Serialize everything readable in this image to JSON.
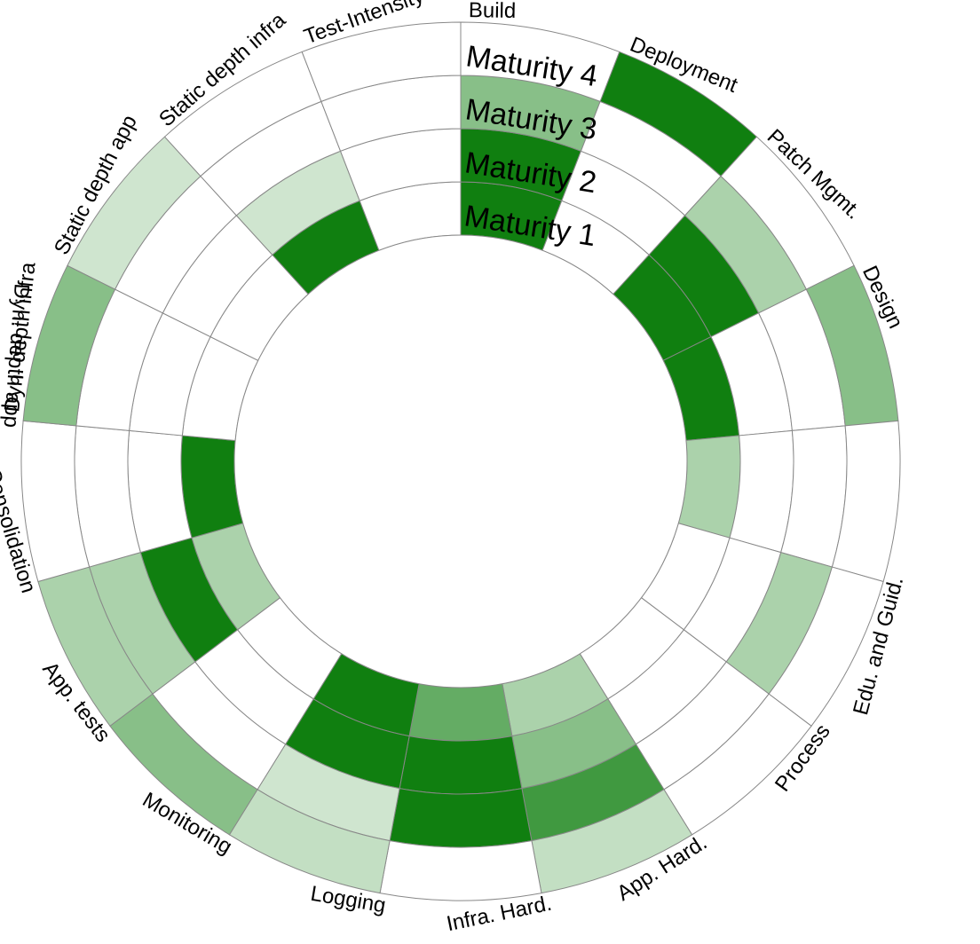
{
  "chart_data": {
    "type": "heatmap",
    "layout": "radial",
    "title": "",
    "dimensions": [
      "Build",
      "Deployment",
      "Patch Mgmt.",
      "Design",
      "Edu. and Guid.",
      "Process",
      "App. Hard.",
      "Infra. Hard.",
      "Logging",
      "Monitoring",
      "App. tests",
      "Consolidation",
      "Dyn. depth app",
      "Dyn. depth infra",
      "Static depth app",
      "Static depth infra",
      "Test-Intensity"
    ],
    "levels": [
      "Maturity 1",
      "Maturity 2",
      "Maturity 3",
      "Maturity 4"
    ],
    "values": [
      [
        1.0,
        1.0,
        0.5,
        0.0
      ],
      [
        0.0,
        0.0,
        0.0,
        1.0
      ],
      [
        1.0,
        1.0,
        0.35,
        0.0
      ],
      [
        1.0,
        0.0,
        0.0,
        0.5
      ],
      [
        0.35,
        0.0,
        0.0,
        0.0
      ],
      [
        0.0,
        0.0,
        0.35,
        0.0
      ],
      [
        0.0,
        0.0,
        0.0,
        0.0
      ],
      [
        0.35,
        0.5,
        0.8,
        0.25
      ],
      [
        0.65,
        1.0,
        1.0,
        0.0
      ],
      [
        1.0,
        1.0,
        0.2,
        0.25
      ],
      [
        0.0,
        0.0,
        0.0,
        0.5
      ],
      [
        0.35,
        1.0,
        0.35,
        0.35
      ],
      [
        1.0,
        0.0,
        0.0,
        0.0
      ],
      [
        0.0,
        0.0,
        0.0,
        0.5
      ],
      [
        0.0,
        0.0,
        0.0,
        0.2
      ],
      [
        1.0,
        0.2,
        0.0,
        0.0
      ],
      [
        0.0,
        0.0,
        0.0,
        0.0
      ]
    ],
    "color_full": "#107f10",
    "color_empty": "#ffffff",
    "grid": "#888888"
  }
}
